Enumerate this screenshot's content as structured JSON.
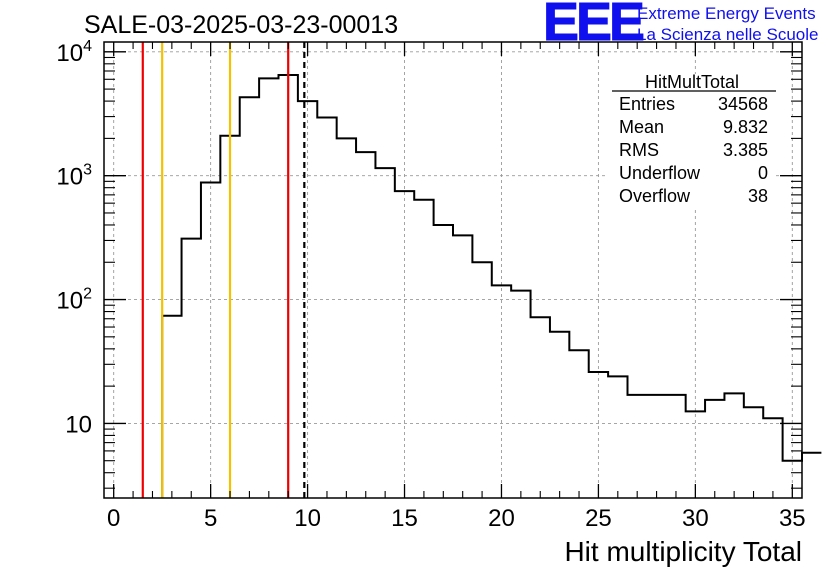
{
  "chart_data": {
    "type": "histogram",
    "title": "SALE-03-2025-03-23-00013",
    "xlabel": "Hit multiplicity Total",
    "ylabel": "",
    "yscale": "log",
    "xlim": [
      -0.5,
      35.5
    ],
    "ylim": [
      2.5,
      12000
    ],
    "x_ticks": [
      "0",
      "5",
      "10",
      "15",
      "20",
      "25",
      "30",
      "35"
    ],
    "y_ticks": [
      {
        "value": 10,
        "base": "10",
        "exp": ""
      },
      {
        "value": 100,
        "base": "10",
        "exp": "2"
      },
      {
        "value": 1000,
        "base": "10",
        "exp": "3"
      },
      {
        "value": 10000,
        "base": "10",
        "exp": "4"
      }
    ],
    "grid": true,
    "bins": {
      "lo": 2.5,
      "width": 1,
      "values": [
        74,
        310,
        880,
        2100,
        4300,
        6100,
        6500,
        4000,
        2950,
        2000,
        1550,
        1150,
        750,
        640,
        400,
        330,
        200,
        130,
        118,
        72,
        55,
        39,
        26,
        24,
        17,
        17,
        17,
        12.5,
        15.5,
        17.5,
        13.5,
        11,
        5,
        5.8
      ]
    },
    "vlines": [
      {
        "x": 1.5,
        "color": "#ee0000",
        "style": "solid"
      },
      {
        "x": 2.5,
        "color": "#f2c200",
        "style": "solid"
      },
      {
        "x": 6.0,
        "color": "#f2c200",
        "style": "solid"
      },
      {
        "x": 9.0,
        "color": "#ee0000",
        "style": "solid"
      },
      {
        "x": 9.832,
        "color": "#000000",
        "style": "dashed"
      }
    ],
    "stats": {
      "name": "HitMultTotal",
      "rows": [
        {
          "label": "Entries",
          "value": "34568"
        },
        {
          "label": "Mean",
          "value": "9.832"
        },
        {
          "label": "RMS",
          "value": "3.385"
        },
        {
          "label": "Underflow",
          "value": "0"
        },
        {
          "label": "Overflow",
          "value": "38"
        }
      ]
    }
  },
  "logo": {
    "text": "EEE",
    "line1": "Extreme Energy Events",
    "line2": "La Scienza nelle Scuole",
    "color": "#1010ee"
  }
}
